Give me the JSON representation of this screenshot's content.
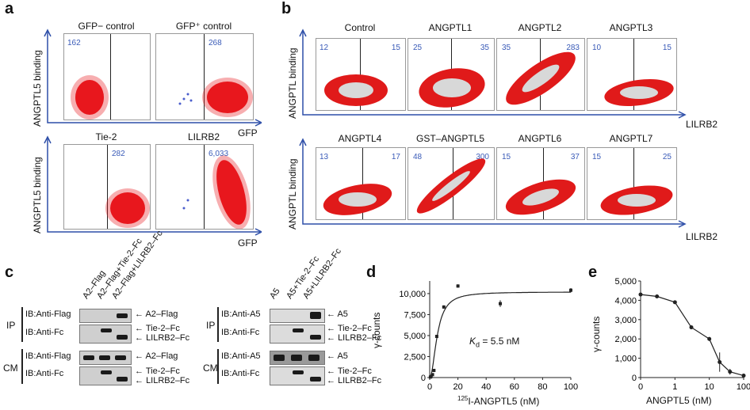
{
  "panels": {
    "a": {
      "letter": "a",
      "ylabel": "ANGPTL5 binding",
      "xlabel": "GFP",
      "plots": [
        {
          "title": "GFP− control",
          "count": "162"
        },
        {
          "title": "GFP⁺ control",
          "count": "268"
        },
        {
          "title": "Tie-2",
          "count": "282"
        },
        {
          "title": "LILRB2",
          "count": "6,033"
        }
      ]
    },
    "b": {
      "letter": "b",
      "ylabel": "ANGPTL binding",
      "xlabel": "LILRB2",
      "plots": [
        {
          "title": "Control",
          "left": "12",
          "right": "15"
        },
        {
          "title": "ANGPTL1",
          "left": "25",
          "right": "35"
        },
        {
          "title": "ANGPTL2",
          "left": "35",
          "right": "283"
        },
        {
          "title": "ANGPTL3",
          "left": "10",
          "right": "15"
        },
        {
          "title": "ANGPTL4",
          "left": "13",
          "right": "17"
        },
        {
          "title": "GST–ANGPTL5",
          "left": "48",
          "right": "300"
        },
        {
          "title": "ANGPTL6",
          "left": "15",
          "right": "37"
        },
        {
          "title": "ANGPTL7",
          "left": "15",
          "right": "25"
        }
      ]
    },
    "c": {
      "letter": "c",
      "left": {
        "lanes": [
          "A2–Flag",
          "A2–Flag+Tie-2–Fc",
          "A2–Flag+LILRB2–Fc"
        ],
        "ip_label": "IP",
        "cm_label": "CM",
        "rows": [
          "IB:Anti-Flag",
          "IB:Anti-Fc",
          "IB:Anti-Flag",
          "IB:Anti-Fc"
        ],
        "markers": [
          "A2–Flag",
          "Tie-2–Fc",
          "LILRB2–Fc",
          "A2–Flag",
          "Tie-2–Fc",
          "LILRB2–Fc"
        ]
      },
      "right": {
        "lanes": [
          "A5",
          "A5+Tie-2–Fc",
          "A5+LILRB2–Fc"
        ],
        "ip_label": "IP",
        "cm_label": "CM",
        "rows": [
          "IB:Anti-A5",
          "IB:Anti-Fc",
          "IB:Anti-A5",
          "IB:Anti-Fc"
        ],
        "markers": [
          "A5",
          "Tie-2–Fc",
          "LILRB2–Fc",
          "A5",
          "Tie-2–Fc",
          "LILRB2–Fc"
        ]
      }
    },
    "d": {
      "letter": "d",
      "ylabel": "γ-counts",
      "xlabel_sup": "125",
      "xlabel": "I-ANGPTL5 (nM)",
      "kd_k": "K",
      "kd_sub": "d",
      "kd_value": " = 5.5 nM"
    },
    "e": {
      "letter": "e",
      "ylabel": "γ-counts",
      "xlabel": "ANGPTL5 (nM)"
    }
  },
  "chart_data": [
    {
      "type": "line",
      "panel": "d",
      "xlabel": "125I-ANGPTL5 (nM)",
      "ylabel": "γ-counts",
      "x_ticks": [
        "0",
        "20",
        "40",
        "60",
        "80",
        "100"
      ],
      "y_ticks": [
        "0",
        "2,500",
        "5,000",
        "7,500",
        "10,000"
      ],
      "xlim": [
        0,
        100
      ],
      "ylim": [
        0,
        11500
      ],
      "series": [
        {
          "x": [
            0.5,
            1,
            2,
            3,
            5,
            10,
            20,
            50,
            100
          ],
          "y": [
            60,
            130,
            350,
            850,
            4900,
            8400,
            10900,
            8800,
            10400
          ],
          "err": [
            30,
            40,
            60,
            80,
            150,
            200,
            200,
            400,
            250
          ]
        }
      ],
      "annotation": "Kd = 5.5 nM"
    },
    {
      "type": "line",
      "panel": "e",
      "xlabel": "ANGPTL5 (nM)",
      "ylabel": "γ-counts",
      "x_ticks": [
        "0",
        "1",
        "10",
        "100"
      ],
      "y_ticks": [
        "0",
        "1,000",
        "2,000",
        "3,000",
        "4,000",
        "5,000"
      ],
      "ylim": [
        0,
        5000
      ],
      "series": [
        {
          "x": [
            0.1,
            0.3,
            1,
            3,
            10,
            20,
            40,
            100
          ],
          "y": [
            4300,
            4200,
            3900,
            2600,
            2000,
            800,
            300,
            100
          ],
          "err": [
            60,
            60,
            80,
            80,
            100,
            500,
            150,
            80
          ]
        }
      ]
    }
  ]
}
